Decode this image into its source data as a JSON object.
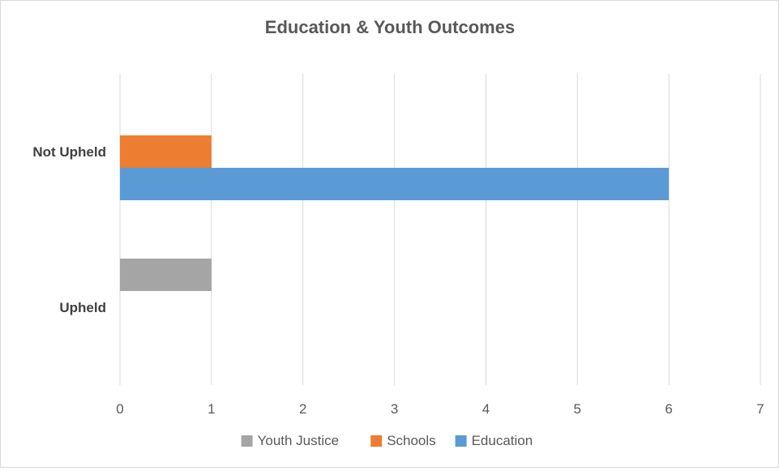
{
  "chart_data": {
    "type": "bar",
    "orientation": "horizontal",
    "title": "Education & Youth Outcomes",
    "categories": [
      "Not Upheld",
      "Upheld"
    ],
    "series": [
      {
        "name": "Youth Justice",
        "color": "#a5a5a5",
        "values": [
          0,
          1
        ]
      },
      {
        "name": "Schools",
        "color": "#ed7d31",
        "values": [
          1,
          0
        ]
      },
      {
        "name": "Education",
        "color": "#5b9bd5",
        "values": [
          6,
          0
        ]
      }
    ],
    "x_ticks": [
      "0",
      "1",
      "2",
      "3",
      "4",
      "5",
      "6",
      "7"
    ],
    "xlim": [
      0,
      7
    ],
    "grid": "vertical",
    "legend_position": "bottom",
    "colors": {
      "grid": "#d9d9d9",
      "title": "#595959",
      "tick_label": "#595959",
      "category_label": "#404040"
    }
  }
}
